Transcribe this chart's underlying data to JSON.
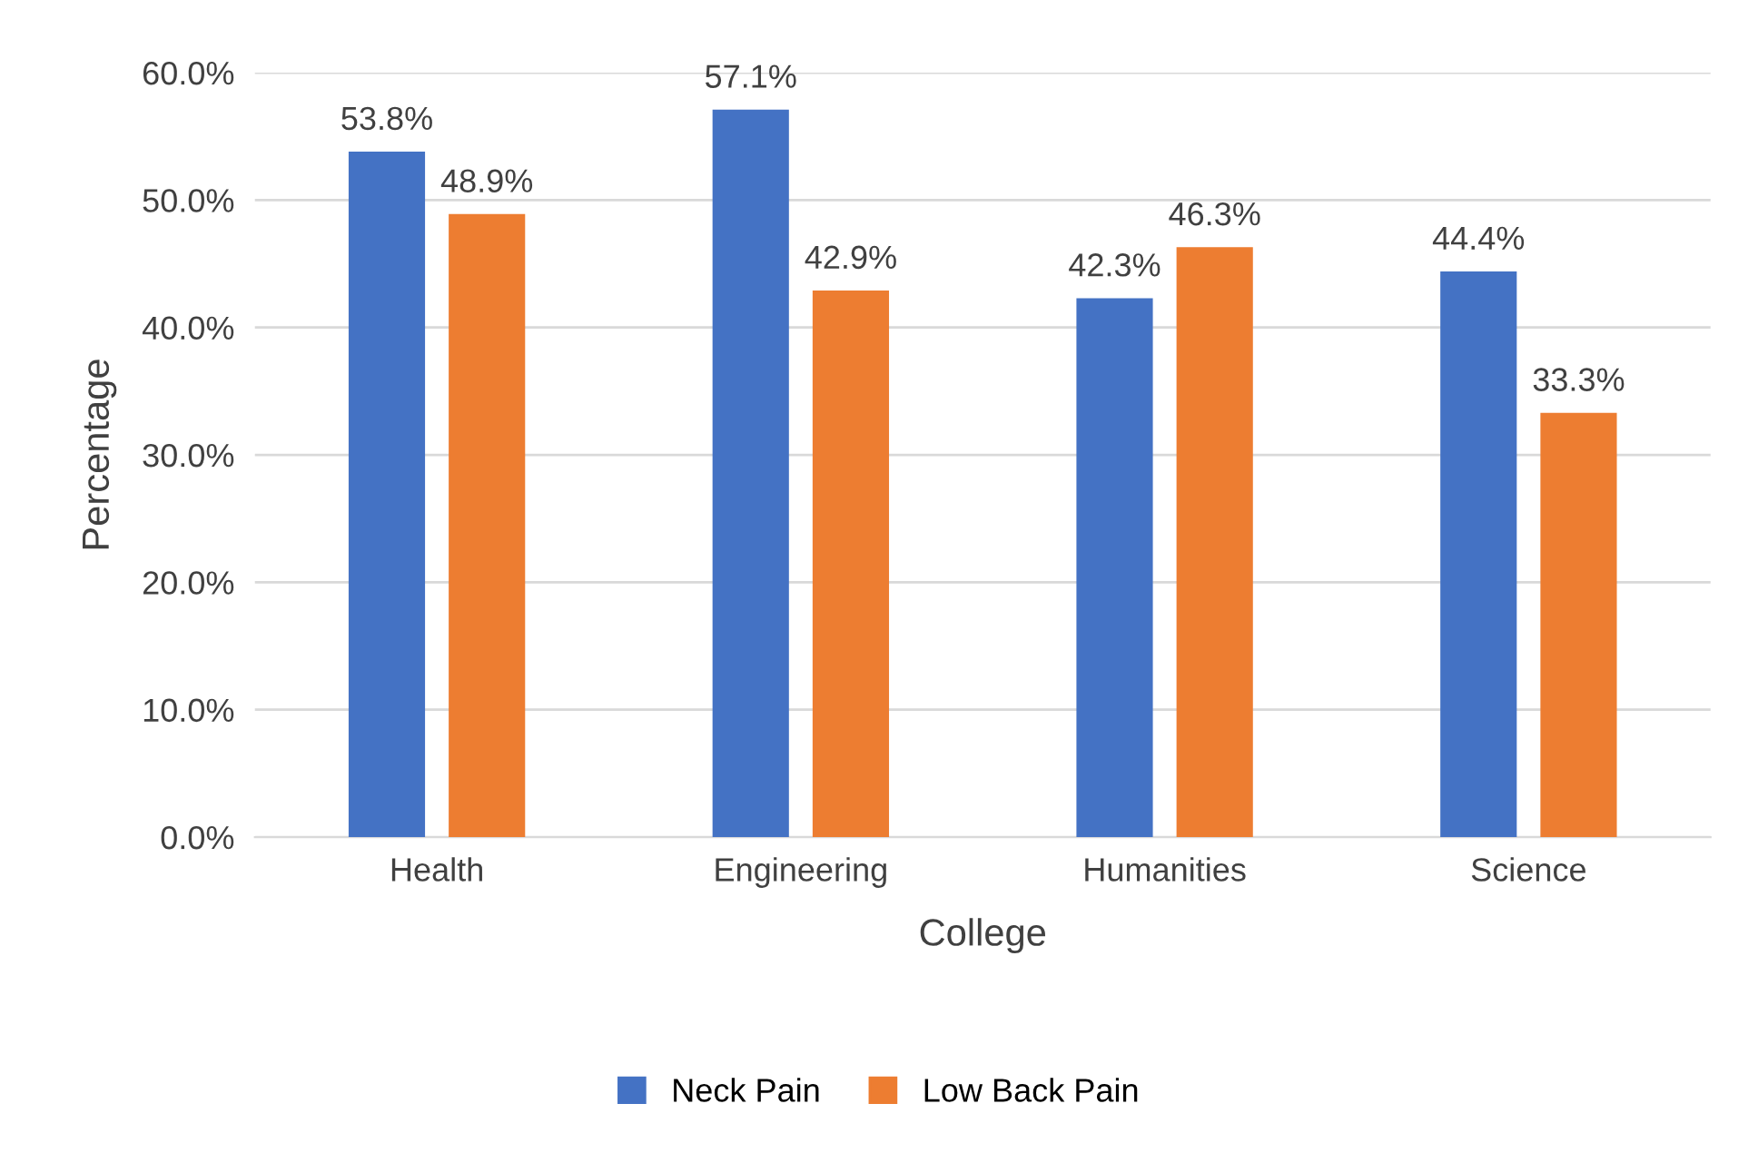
{
  "chart_data": {
    "type": "bar",
    "xlabel": "College",
    "ylabel": "Percentage",
    "categories": [
      "Health",
      "Engineering",
      "Humanities",
      "Science"
    ],
    "series": [
      {
        "name": "Neck Pain",
        "color": "#4472c4",
        "values": [
          53.8,
          57.1,
          42.3,
          44.4
        ],
        "value_labels": [
          "53.8%",
          "57.1%",
          "42.3%",
          "44.4%"
        ]
      },
      {
        "name": "Low Back Pain",
        "color": "#ed7d31",
        "values": [
          48.9,
          42.9,
          46.3,
          33.3
        ],
        "value_labels": [
          "48.9%",
          "42.9%",
          "46.3%",
          "33.3%"
        ]
      }
    ],
    "ylim": [
      0,
      60
    ],
    "yticks": [
      {
        "value": 0,
        "label": "0.0%"
      },
      {
        "value": 10,
        "label": "10.0%"
      },
      {
        "value": 20,
        "label": "20.0%"
      },
      {
        "value": 30,
        "label": "30.0%"
      },
      {
        "value": 40,
        "label": "40.0%"
      },
      {
        "value": 50,
        "label": "50.0%"
      },
      {
        "value": 60,
        "label": "60.0%"
      }
    ],
    "grid": "y",
    "legend": "bottom"
  }
}
